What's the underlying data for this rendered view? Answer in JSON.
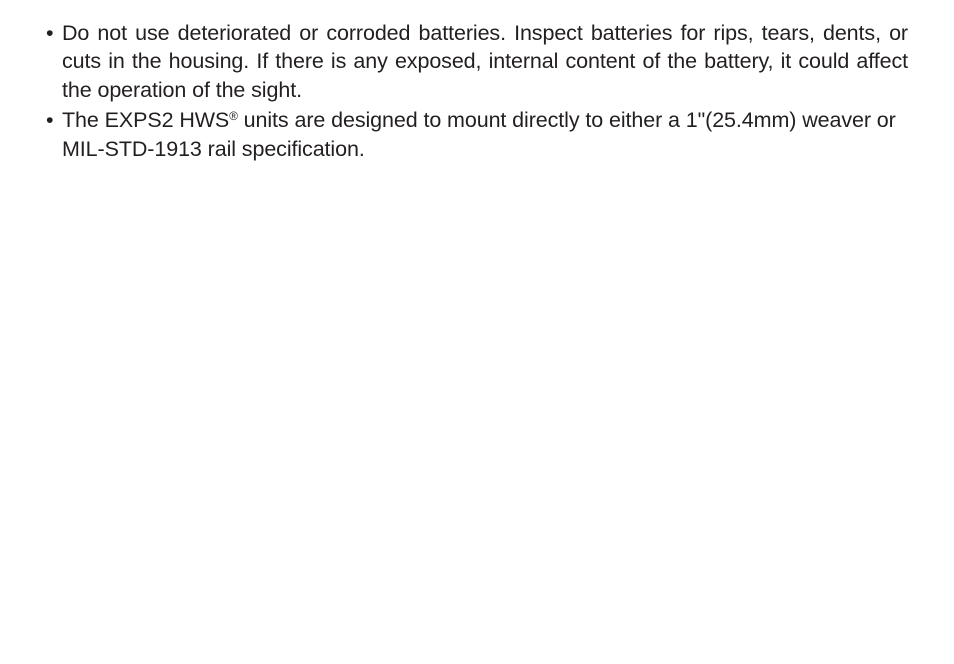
{
  "document": {
    "text_color": "#231f20",
    "background_color": "#ffffff",
    "font_size_pt": 16,
    "bullets": [
      {
        "text_part_a": "Do not use deteriorated or corroded batteries. Inspect batteries for rips, tears, dents, or cuts in the housing. If there is any exposed, internal content of the battery, it could affect the operation of the sight."
      },
      {
        "text_part_a": "The EXPS2 HWS",
        "superscript": "®",
        "text_part_b": " units are designed to mount directly to either a 1\"(25.4mm) weaver or MIL-STD-1913 rail specification."
      }
    ]
  }
}
